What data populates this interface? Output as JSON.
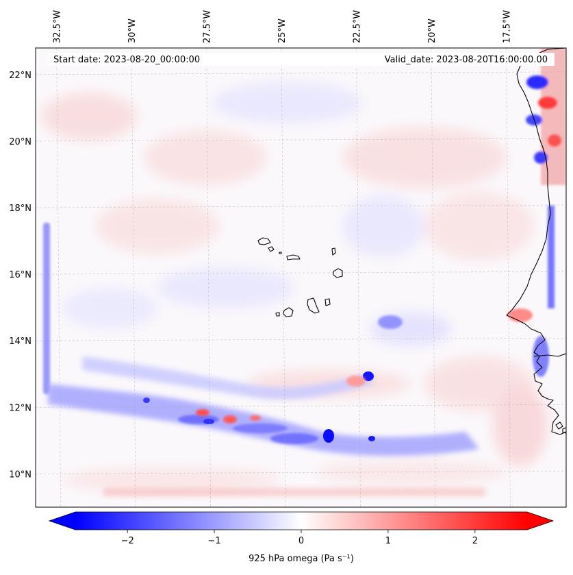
{
  "header": {
    "start_label": "Start date: 2023-08-20_00:00:00",
    "valid_label": "Valid_date: 2023-08-20T16:00:00.00"
  },
  "map": {
    "lon_range": [
      -33.2,
      -15.5
    ],
    "lat_range": [
      9.0,
      22.8
    ],
    "lon_ticks": [
      {
        "value": -32.5,
        "label": "32.5°W"
      },
      {
        "value": -30.0,
        "label": "30°W"
      },
      {
        "value": -27.5,
        "label": "27.5°W"
      },
      {
        "value": -25.0,
        "label": "25°W"
      },
      {
        "value": -22.5,
        "label": "22.5°W"
      },
      {
        "value": -20.0,
        "label": "20°W"
      },
      {
        "value": -17.5,
        "label": "17.5°W"
      }
    ],
    "lat_ticks": [
      {
        "value": 10,
        "label": "10°N"
      },
      {
        "value": 12,
        "label": "12°N"
      },
      {
        "value": 14,
        "label": "14°N"
      },
      {
        "value": 16,
        "label": "16°N"
      },
      {
        "value": 18,
        "label": "18°N"
      },
      {
        "value": 20,
        "label": "20°N"
      },
      {
        "value": 22,
        "label": "22°N"
      }
    ],
    "gridlines": true,
    "colors": {
      "negative": "#0000ff",
      "neutral": "#ffffff",
      "positive": "#ff0000",
      "coastline": "#000000"
    }
  },
  "colorbar": {
    "label": "925 hPa omega (Pa s⁻¹)",
    "min": -2.6,
    "max": 2.6,
    "ticks": [
      {
        "value": -2,
        "label": "−2"
      },
      {
        "value": -1,
        "label": "−1"
      },
      {
        "value": 0,
        "label": "0"
      },
      {
        "value": 1,
        "label": "1"
      },
      {
        "value": 2,
        "label": "2"
      }
    ],
    "extend": "both"
  }
}
